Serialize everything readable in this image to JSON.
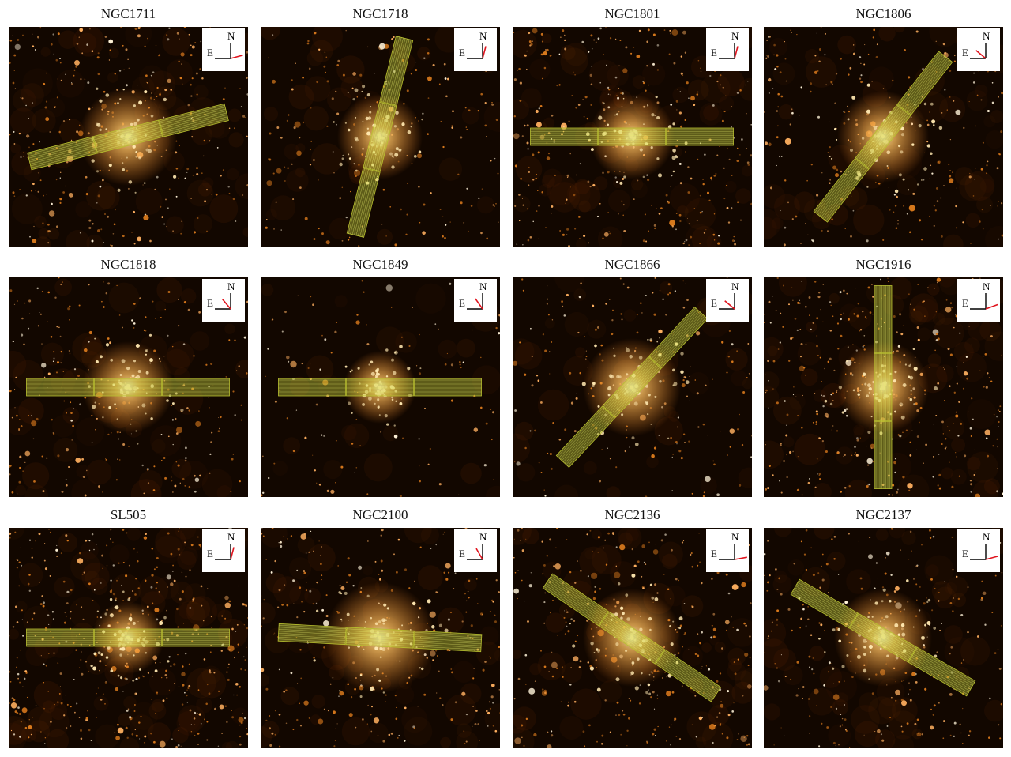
{
  "compass": {
    "north_label": "N",
    "east_label": "E"
  },
  "colors": {
    "sky": "#120700",
    "star": "#ffb060",
    "slit": "#c8d23c",
    "pa_arrow": "#e0141e"
  },
  "panels": [
    {
      "title": "NGC1711",
      "pa_deg": -15,
      "slit_angle_deg": -14,
      "density": 1.0,
      "glow": 0.8
    },
    {
      "title": "NGC1718",
      "pa_deg": -75,
      "slit_angle_deg": -76,
      "density": 0.6,
      "glow": 0.6
    },
    {
      "title": "NGC1801",
      "pa_deg": -75,
      "slit_angle_deg": 0,
      "density": 1.1,
      "glow": 0.6
    },
    {
      "title": "NGC1806",
      "pa_deg": -140,
      "slit_angle_deg": -52,
      "density": 0.8,
      "glow": 0.7
    },
    {
      "title": "NGC1818",
      "pa_deg": -130,
      "slit_angle_deg": 0,
      "density": 0.8,
      "glow": 0.7
    },
    {
      "title": "NGC1849",
      "pa_deg": -125,
      "slit_angle_deg": 0,
      "density": 0.35,
      "glow": 0.4
    },
    {
      "title": "NGC1866",
      "pa_deg": -140,
      "slit_angle_deg": -47,
      "density": 0.6,
      "glow": 0.8
    },
    {
      "title": "NGC1916",
      "pa_deg": -20,
      "slit_angle_deg": -90,
      "density": 1.2,
      "glow": 0.7
    },
    {
      "title": "SL505",
      "pa_deg": -75,
      "slit_angle_deg": 0,
      "density": 1.4,
      "glow": 0.4
    },
    {
      "title": "NGC2100",
      "pa_deg": -120,
      "slit_angle_deg": 3,
      "density": 0.9,
      "glow": 1.0
    },
    {
      "title": "NGC2136",
      "pa_deg": -10,
      "slit_angle_deg": 34,
      "density": 1.0,
      "glow": 0.8
    },
    {
      "title": "NGC2137",
      "pa_deg": -15,
      "slit_angle_deg": 30,
      "density": 0.9,
      "glow": 0.8
    }
  ]
}
